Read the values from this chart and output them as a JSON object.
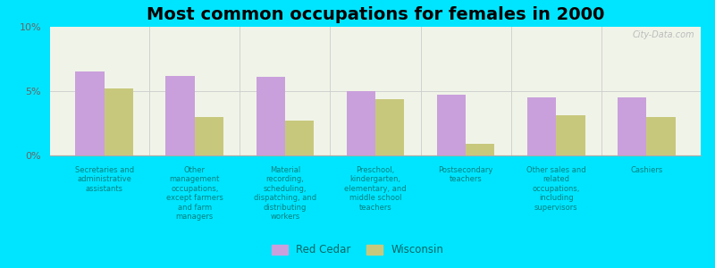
{
  "title": "Most common occupations for females in 2000",
  "categories": [
    "Secretaries and\nadministrative\nassistants",
    "Other\nmanagement\noccupations,\nexcept farmers\nand farm\nmanagers",
    "Material\nrecording,\nscheduling,\ndispatching, and\ndistributing\nworkers",
    "Preschool,\nkindergarten,\nelementary, and\nmiddle school\nteachers",
    "Postsecondary\nteachers",
    "Other sales and\nrelated\noccupations,\nincluding\nsupervisors",
    "Cashiers"
  ],
  "red_cedar": [
    6.5,
    6.2,
    6.1,
    5.0,
    4.7,
    4.5,
    4.5
  ],
  "wisconsin": [
    5.2,
    3.0,
    2.7,
    4.4,
    0.9,
    3.1,
    3.0
  ],
  "red_cedar_color": "#c9a0dc",
  "wisconsin_color": "#c8c87d",
  "background_color": "#00e5ff",
  "plot_bg": "#f0f4e8",
  "ylabel_ticks": [
    "0%",
    "5%",
    "10%"
  ],
  "ytick_vals": [
    0,
    5,
    10
  ],
  "ylim": [
    0,
    10
  ],
  "legend_labels": [
    "Red Cedar",
    "Wisconsin"
  ],
  "bar_width": 0.32,
  "title_fontsize": 14,
  "tick_label_color": "#008080",
  "ytick_label_color": "#666666",
  "watermark": "City-Data.com"
}
